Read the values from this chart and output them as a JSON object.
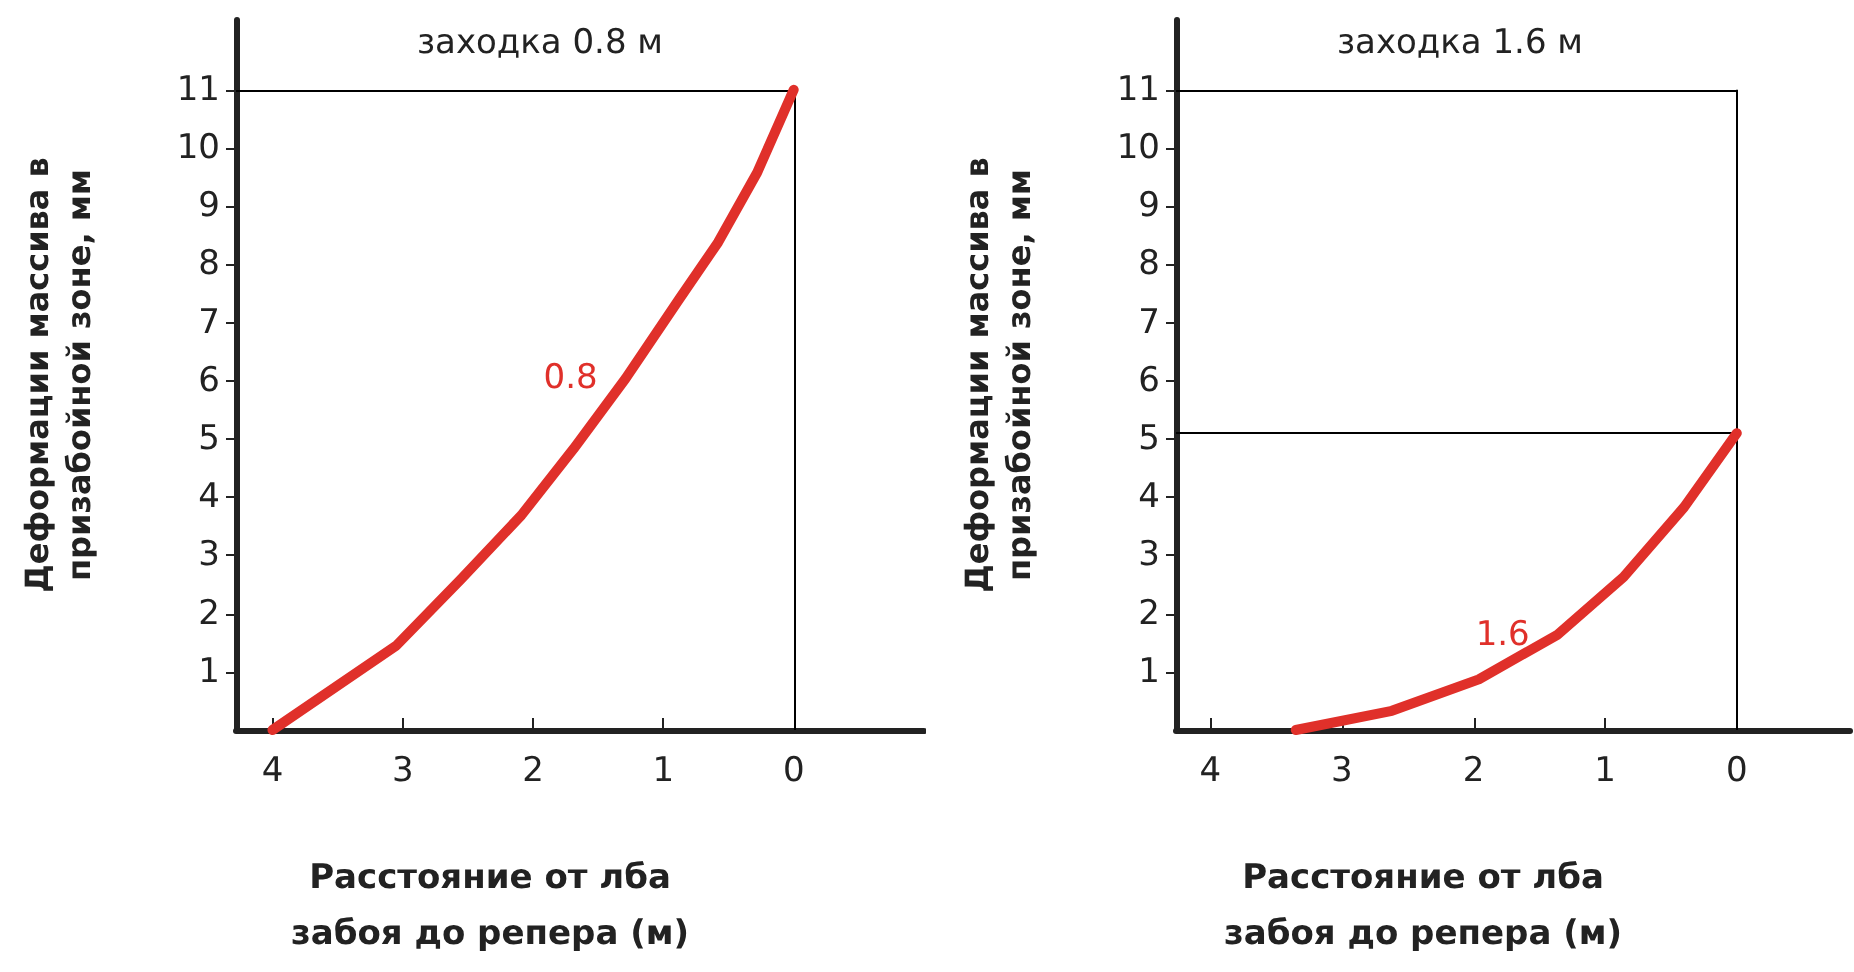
{
  "chart_data": [
    {
      "type": "line",
      "title": "заходка 0.8 м",
      "xlabel": "Расстояние от лба забоя до репера (м)",
      "ylabel": "Деформации массива в призабойной зоне, мм",
      "xlim": [
        4.28,
        -1.0
      ],
      "xticks": [
        4,
        3,
        2,
        1,
        0
      ],
      "ylim": [
        0,
        12.2
      ],
      "yticks": [
        1,
        2,
        3,
        4,
        5,
        6,
        7,
        8,
        9,
        10,
        11
      ],
      "series": [
        {
          "name": "0.8",
          "color": "#e0302a",
          "x": [
            4,
            3.05,
            2.55,
            2.09,
            1.69,
            1.29,
            0.88,
            0.58,
            0.28,
            0
          ],
          "values": [
            0,
            1.45,
            2.6,
            3.69,
            4.83,
            6.04,
            7.4,
            8.38,
            9.58,
            11
          ]
        }
      ],
      "ref_lines": [
        {
          "axis": "y",
          "value": 11,
          "color": "#000000"
        },
        {
          "axis": "x",
          "value": 0,
          "color": "#000000"
        }
      ],
      "grid": false,
      "legend": false,
      "marker": "none",
      "line_style": "solid"
    },
    {
      "type": "line",
      "title": "заходка 1.6 м",
      "xlabel": "Расстояние от лба забоя до репера (м)",
      "ylabel": "Деформации массива в призабойной зоне, мм",
      "xlim": [
        4.26,
        -0.86
      ],
      "xticks": [
        4,
        3,
        2,
        1,
        0
      ],
      "ylim": [
        0,
        12.2
      ],
      "yticks": [
        1,
        2,
        3,
        4,
        5,
        6,
        7,
        8,
        9,
        10,
        11
      ],
      "series": [
        {
          "name": "1.6",
          "color": "#e0302a",
          "x": [
            3.35,
            2.62,
            1.96,
            1.36,
            0.86,
            0.4,
            0
          ],
          "values": [
            0,
            0.33,
            0.87,
            1.64,
            2.63,
            3.83,
            5.1
          ]
        }
      ],
      "ref_lines": [
        {
          "axis": "y",
          "value": 11,
          "color": "#000000"
        },
        {
          "axis": "y",
          "value": 5.1,
          "color": "#000000"
        },
        {
          "axis": "x",
          "value": 0,
          "color": "#000000"
        }
      ],
      "grid": false,
      "legend": false,
      "marker": "none",
      "line_style": "solid"
    }
  ]
}
